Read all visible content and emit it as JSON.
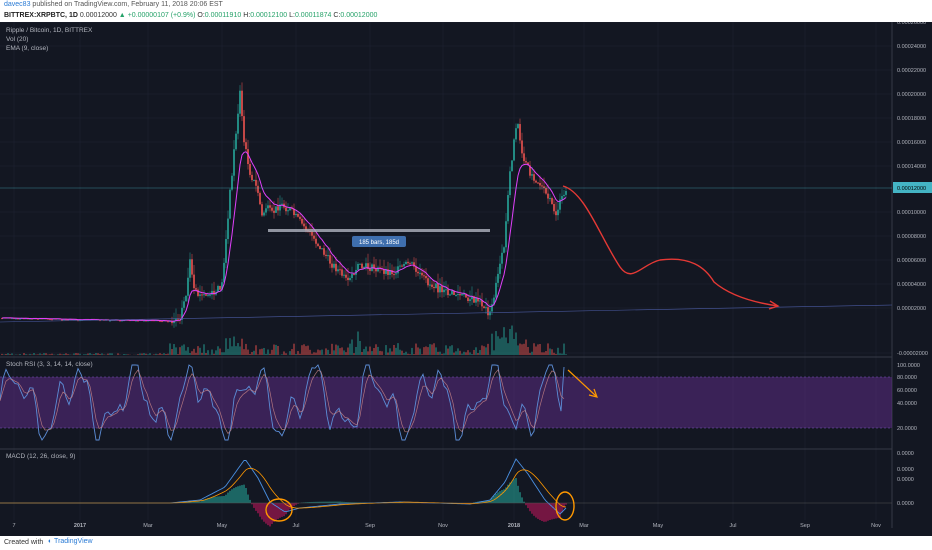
{
  "header": {
    "user": "davec83",
    "published": "published on TradingView.com, February 11, 2018 20:06 EST",
    "symbol": "BITTREX:XRPBTC, 1D",
    "last": "0.00012000",
    "change": "+0.00000107 (+0.9%)",
    "open_label": "O:",
    "open": "0.00011910",
    "high_label": "H:",
    "high": "0.00012100",
    "low_label": "L:",
    "low": "0.00011874",
    "close_label": "C:",
    "close": "0.00012000"
  },
  "legends": {
    "main": "Ripple / Bitcoin, 1D, BITTREX",
    "vol": "Vol (20)",
    "ema": "EMA (9, close)",
    "stoch": "Stoch RSI (3, 3, 14, 14, close)",
    "macd": "MACD (12, 26, close, 9)"
  },
  "price_axis": [
    "0.00026000",
    "0.00024000",
    "0.00022000",
    "0.00020000",
    "0.00018000",
    "0.00016000",
    "0.00014000",
    "0.00010000",
    "0.00008000",
    "0.00006000",
    "0.00004000",
    "0.00002000",
    "-0.00002000"
  ],
  "current_price": "0.00012000",
  "stoch_axis": [
    "100.0000",
    "80.0000",
    "60.0000",
    "40.0000",
    "20.0000"
  ],
  "macd_axis": [
    "0.0000",
    "0.0000",
    "0.0000",
    "0.0000"
  ],
  "time_axis": [
    "7",
    "2017",
    "Mar",
    "May",
    "Jul",
    "Sep",
    "Nov",
    "2018",
    "Mar",
    "May",
    "Jul",
    "Sep",
    "Nov"
  ],
  "range_label": "185 bars, 185d",
  "footer": {
    "created": "Created with",
    "brand": "TradingView"
  },
  "colors": {
    "background": "#131722",
    "up": "#26a69a",
    "down": "#ef5350",
    "ema": "#e040fb",
    "forecast": "#e53935",
    "stoch_band": "#5b2c83",
    "annotation": "#ff9800"
  }
}
